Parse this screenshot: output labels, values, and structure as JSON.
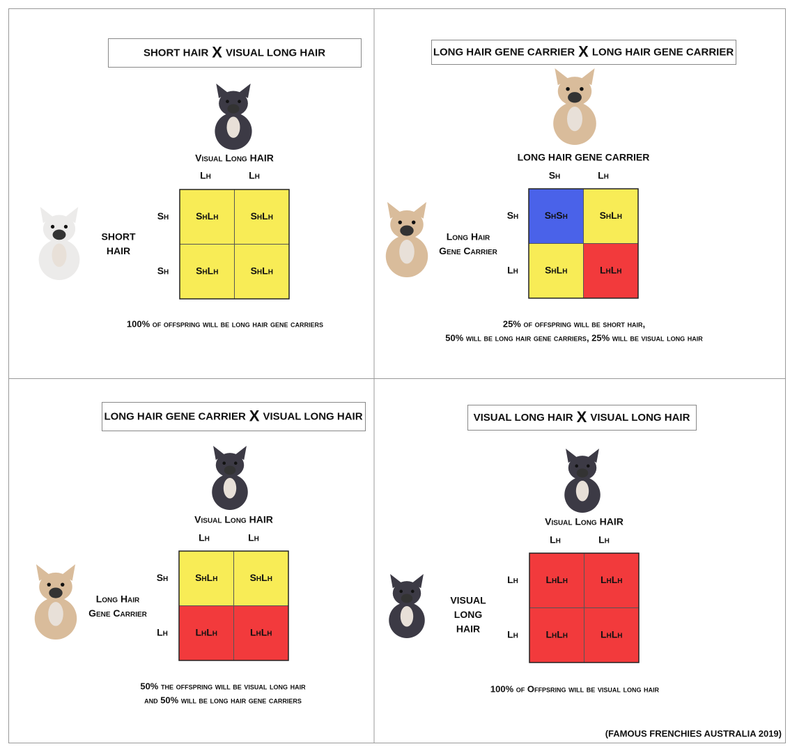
{
  "panels": [
    {
      "title": [
        "SHORT HAIR",
        "X",
        "VISUAL LONG HAIR"
      ],
      "top_parent": [
        "Visual Long HAIR"
      ],
      "left_parent": [
        "SHORT",
        "HAIR"
      ],
      "top_alleles": [
        "Lh",
        "Lh"
      ],
      "left_alleles": [
        "Sh",
        "Sh"
      ],
      "cells": [
        [
          {
            "text": "ShLh",
            "color": "#f8ec56"
          },
          {
            "text": "ShLh",
            "color": "#f8ec56"
          }
        ],
        [
          {
            "text": "ShLh",
            "color": "#f8ec56"
          },
          {
            "text": "ShLh",
            "color": "#f8ec56"
          }
        ]
      ],
      "caption": [
        "100% of offspring will be long hair gene carriers"
      ]
    },
    {
      "title": [
        "LONG HAIR GENE CARRIER",
        "X",
        "LONG HAIR GENE CARRIER"
      ],
      "top_parent": [
        "LONG HAIR GENE CARRIER"
      ],
      "left_parent": [
        "Long Hair",
        "Gene Carrier"
      ],
      "top_alleles": [
        "Sh",
        "Lh"
      ],
      "left_alleles": [
        "Sh",
        "Lh"
      ],
      "cells": [
        [
          {
            "text": "ShSh",
            "color": "#4a62e9"
          },
          {
            "text": "ShLh",
            "color": "#f8ec56"
          }
        ],
        [
          {
            "text": "ShLh",
            "color": "#f8ec56"
          },
          {
            "text": "LhLh",
            "color": "#f23a3c"
          }
        ]
      ],
      "caption": [
        "25% of offspring will be short hair,",
        "50% will be long hair gene carriers, 25% will be visual long hair"
      ]
    },
    {
      "title": [
        "LONG HAIR GENE CARRIER",
        "X",
        "VISUAL LONG HAIR"
      ],
      "top_parent": [
        "Visual Long HAIR"
      ],
      "left_parent": [
        "Long Hair",
        "Gene Carrier"
      ],
      "top_alleles": [
        "Lh",
        "Lh"
      ],
      "left_alleles": [
        "Sh",
        "Lh"
      ],
      "cells": [
        [
          {
            "text": "ShLh",
            "color": "#f8ec56"
          },
          {
            "text": "ShLh",
            "color": "#f8ec56"
          }
        ],
        [
          {
            "text": "LhLh",
            "color": "#f23a3c"
          },
          {
            "text": "LhLh",
            "color": "#f23a3c"
          }
        ]
      ],
      "caption": [
        "50% the offspring will be visual long hair",
        "and 50% will be long hair gene carriers"
      ]
    },
    {
      "title": [
        "VISUAL LONG HAIR",
        "X",
        "VISUAL LONG HAIR"
      ],
      "top_parent": [
        "Visual Long HAIR"
      ],
      "left_parent": [
        "VISUAL",
        "LONG",
        "HAIR"
      ],
      "top_alleles": [
        "Lh",
        "Lh"
      ],
      "left_alleles": [
        "Lh",
        "Lh"
      ],
      "cells": [
        [
          {
            "text": "LhLh",
            "color": "#f23a3c"
          },
          {
            "text": "LhLh",
            "color": "#f23a3c"
          }
        ],
        [
          {
            "text": "LhLh",
            "color": "#f23a3c"
          },
          {
            "text": "LhLh",
            "color": "#f23a3c"
          }
        ]
      ],
      "caption": [
        "100% of Offpsring will be visual long hair"
      ]
    }
  ],
  "credit": "(FAMOUS FRENCHIES AUSTRALIA 2019)"
}
